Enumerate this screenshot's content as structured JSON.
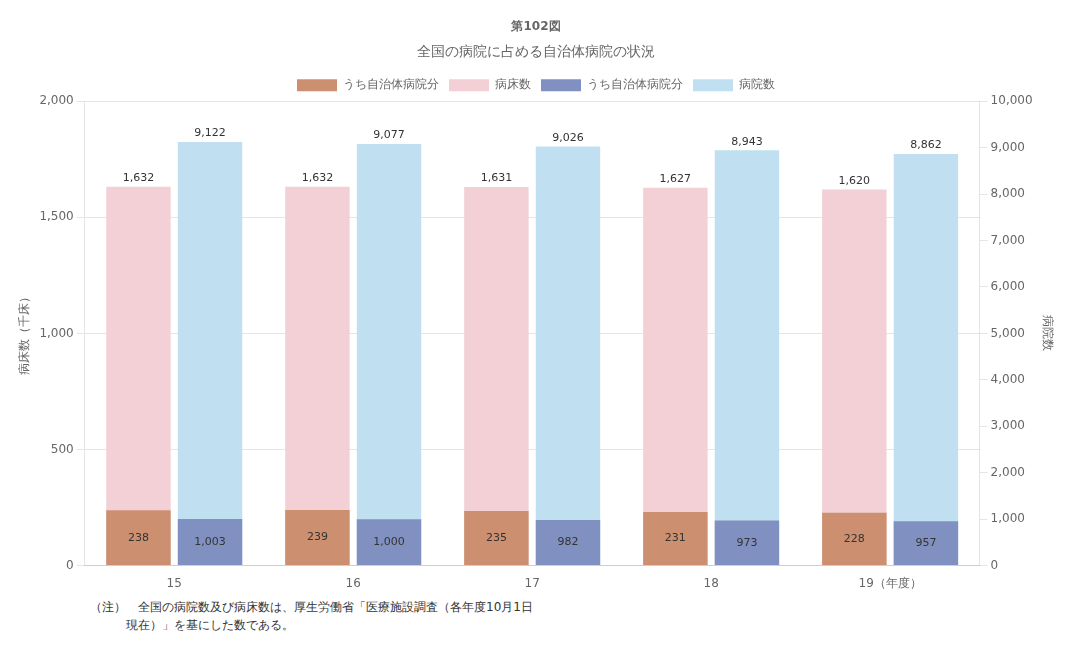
{
  "chart_data": {
    "type": "bar",
    "title": "第102図",
    "subtitle": "全国の病院に占める自治体病院の状況",
    "categories": [
      "15",
      "16",
      "17",
      "18",
      "19（年度）"
    ],
    "ylabel": "病床数（千床）",
    "y2label": "病院数",
    "ylim": [
      0,
      2000
    ],
    "yticks": [
      0,
      500,
      {
        "value": 1000,
        "label": "1,000"
      },
      {
        "value": 1500,
        "label": "1,500"
      },
      {
        "value": 2000,
        "label": "2,000"
      }
    ],
    "y2lim": [
      0,
      10000
    ],
    "y2ticks": [
      0,
      {
        "value": 1000,
        "label": "1,000"
      },
      {
        "value": 2000,
        "label": "2,000"
      },
      {
        "value": 3000,
        "label": "3,000"
      },
      {
        "value": 4000,
        "label": "4,000"
      },
      {
        "value": 5000,
        "label": "5,000"
      },
      {
        "value": 6000,
        "label": "6,000"
      },
      {
        "value": 7000,
        "label": "7,000"
      },
      {
        "value": 8000,
        "label": "8,000"
      },
      {
        "value": 9000,
        "label": "9,000"
      },
      {
        "value": 10000,
        "label": "10,000"
      }
    ],
    "series": [
      {
        "name": "うち自治体病院分",
        "color": "#cc9070",
        "values": [
          238,
          239,
          235,
          231,
          228
        ],
        "axis": "y"
      },
      {
        "name": "病床数",
        "color": "#f2d0d5",
        "values": [
          1632,
          1632,
          1631,
          1627,
          1620
        ],
        "value_labels": [
          "1,632",
          "1,632",
          "1,631",
          "1,627",
          "1,620"
        ],
        "axis": "y"
      },
      {
        "name": "うち自治体病院分",
        "color": "#8090c0",
        "values": [
          1003,
          1000,
          982,
          973,
          957
        ],
        "value_labels": [
          "1,003",
          "1,000",
          "982",
          "973",
          "957"
        ],
        "axis": "y2"
      },
      {
        "name": "病院数",
        "color": "#c0dff0",
        "values": [
          9122,
          9077,
          9026,
          8943,
          8862
        ],
        "value_labels": [
          "9,122",
          "9,077",
          "9,026",
          "8,943",
          "8,862"
        ],
        "axis": "y2"
      }
    ],
    "grid": true,
    "legend": "top",
    "data_labels": true,
    "annotations": [
      "（注）　全国の病院数及び病床数は、厚生労働省「医療施設調査（各年度10月1日",
      "　　　現在）」を基にした数である。"
    ]
  }
}
